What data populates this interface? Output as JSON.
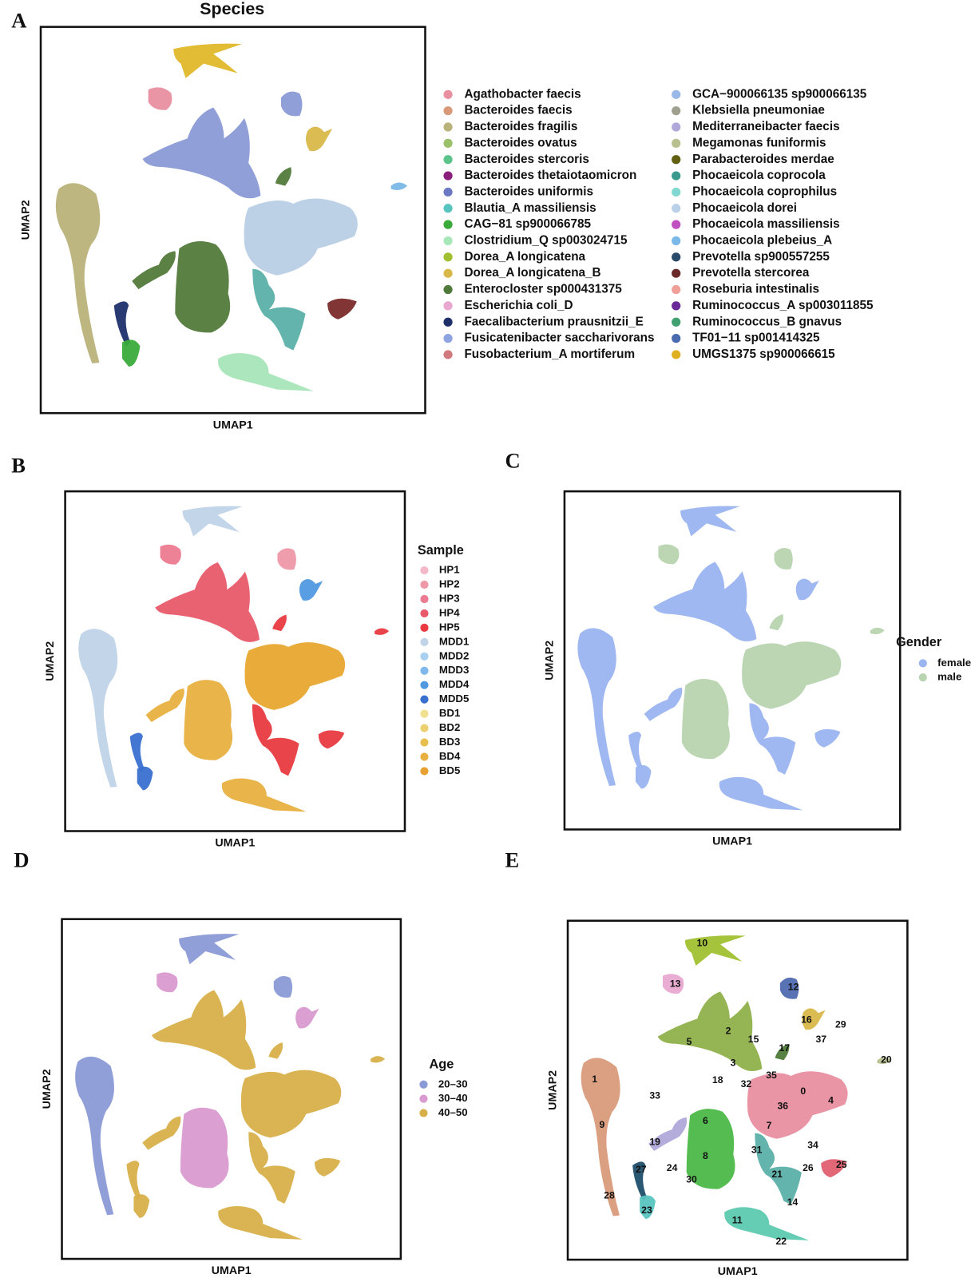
{
  "figure": {
    "panels": [
      {
        "letter": "A",
        "title": "Species",
        "x_label": "UMAP1",
        "y_label": "UMAP2",
        "legend": {
          "items": [
            {
              "label": "Agathobacter faecis",
              "color": "#e88fa0"
            },
            {
              "label": "Bacteroides faecis",
              "color": "#d99a7a"
            },
            {
              "label": "Bacteroides fragilis",
              "color": "#b9b27a"
            },
            {
              "label": "Bacteroides ovatus",
              "color": "#9ac068"
            },
            {
              "label": "Bacteroides stercoris",
              "color": "#5cc48a"
            },
            {
              "label": "Bacteroides thetaiotaomicron",
              "color": "#8a1f7a"
            },
            {
              "label": "Bacteroides uniformis",
              "color": "#6b78c4"
            },
            {
              "label": "Blautia_A massiliensis",
              "color": "#58c4c0"
            },
            {
              "label": "CAG−81 sp900066785",
              "color": "#3aab3a"
            },
            {
              "label": "Clostridium_Q sp003024715",
              "color": "#a8e8b8"
            },
            {
              "label": "Dorea_A longicatena",
              "color": "#a0c030"
            },
            {
              "label": "Dorea_A longicatena_B",
              "color": "#d9b84a"
            },
            {
              "label": "Enterocloster sp000431375",
              "color": "#4f7a3a"
            },
            {
              "label": "Escherichia coli_D",
              "color": "#e8a8d0"
            },
            {
              "label": "Faecalibacterium prausnitzii_E",
              "color": "#1f2f6a"
            },
            {
              "label": "Fusicatenibacter saccharivorans",
              "color": "#8ea4e0"
            },
            {
              "label": "Fusobacterium_A mortiferum",
              "color": "#d07a80"
            },
            {
              "label": "GCA−900066135 sp900066135",
              "color": "#9ab8e8"
            },
            {
              "label": "Klebsiella pneumoniae",
              "color": "#a0a090"
            },
            {
              "label": "Mediterraneibacter faecis",
              "color": "#b0a8d8"
            },
            {
              "label": "Megamonas funiformis",
              "color": "#b8c090"
            },
            {
              "label": "Parabacteroides merdae",
              "color": "#606010"
            },
            {
              "label": "Phocaeicola coprocola",
              "color": "#3a9a90"
            },
            {
              "label": "Phocaeicola coprophilus",
              "color": "#80d8d0"
            },
            {
              "label": "Phocaeicola dorei",
              "color": "#b9d0e8"
            },
            {
              "label": "Phocaeicola massiliensis",
              "color": "#c050c0"
            },
            {
              "label": "Phocaeicola plebeius_A",
              "color": "#7ab8e8"
            },
            {
              "label": "Prevotella sp900557255",
              "color": "#2a4a6a"
            },
            {
              "label": "Prevotella stercorea",
              "color": "#6a2a2a"
            },
            {
              "label": "Roseburia intestinalis",
              "color": "#f0a098"
            },
            {
              "label": "Ruminococcus_A sp003011855",
              "color": "#6a2a9a"
            },
            {
              "label": "Ruminococcus_B gnavus",
              "color": "#40a070"
            },
            {
              "label": "TF01−11 sp001414325",
              "color": "#4a6ab0"
            },
            {
              "label": "UMGS1375 sp900066615",
              "color": "#e0b020"
            }
          ]
        }
      },
      {
        "letter": "B",
        "x_label": "UMAP1",
        "y_label": "UMAP2",
        "legend": {
          "title": "Sample",
          "items": [
            {
              "label": "HP1",
              "color": "#f4b8c8"
            },
            {
              "label": "HP2",
              "color": "#ee98a8"
            },
            {
              "label": "HP3",
              "color": "#ec7a90"
            },
            {
              "label": "HP4",
              "color": "#e85a6a"
            },
            {
              "label": "HP5",
              "color": "#e83a40"
            },
            {
              "label": "MDD1",
              "color": "#c0d4e8"
            },
            {
              "label": "MDD2",
              "color": "#a8d0f0"
            },
            {
              "label": "MDD3",
              "color": "#80b8ec"
            },
            {
              "label": "MDD4",
              "color": "#5098e0"
            },
            {
              "label": "MDD5",
              "color": "#3a70d0"
            },
            {
              "label": "BD1",
              "color": "#f0e090"
            },
            {
              "label": "BD2",
              "color": "#ecd070"
            },
            {
              "label": "BD3",
              "color": "#e8c050"
            },
            {
              "label": "BD4",
              "color": "#e8b040"
            },
            {
              "label": "BD5",
              "color": "#e8a030"
            }
          ]
        }
      },
      {
        "letter": "C",
        "x_label": "UMAP1",
        "y_label": "UMAP2",
        "legend": {
          "title": "Gender",
          "items": [
            {
              "label": "female",
              "color": "#9ab4f0"
            },
            {
              "label": "male",
              "color": "#b8d4b0"
            }
          ]
        }
      },
      {
        "letter": "D",
        "x_label": "UMAP1",
        "y_label": "UMAP2",
        "legend": {
          "title": "Age",
          "items": [
            {
              "label": "20–30",
              "color": "#8a9ad6"
            },
            {
              "label": "30–40",
              "color": "#d99ad0"
            },
            {
              "label": "40–50",
              "color": "#d8b04a"
            }
          ]
        }
      },
      {
        "letter": "E",
        "x_label": "UMAP1",
        "y_label": "UMAP2",
        "cluster_labels": [
          "10",
          "13",
          "12",
          "16",
          "29",
          "2",
          "15",
          "37",
          "5",
          "17",
          "20",
          "3",
          "35",
          "18",
          "32",
          "0",
          "4",
          "1",
          "33",
          "36",
          "6",
          "9",
          "7",
          "19",
          "34",
          "31",
          "8",
          "25",
          "24",
          "27",
          "26",
          "21",
          "30",
          "14",
          "28",
          "23",
          "11",
          "22"
        ]
      }
    ]
  }
}
